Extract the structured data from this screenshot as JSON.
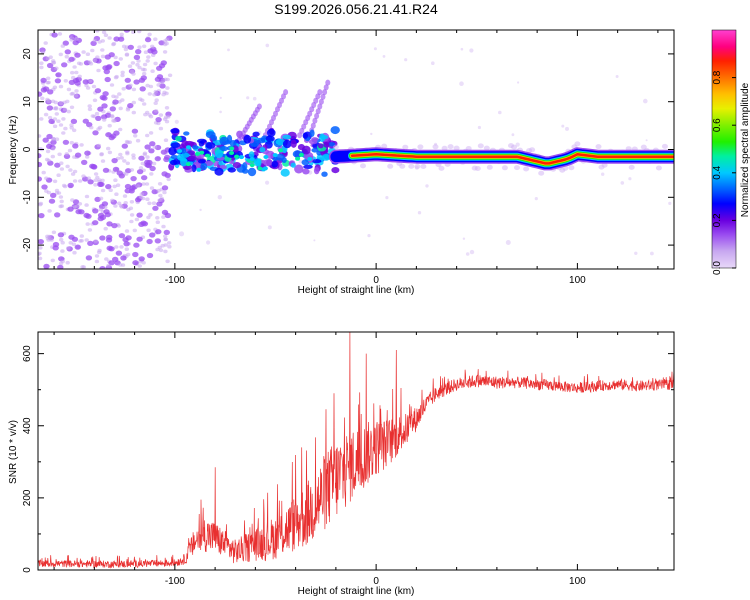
{
  "chart_data": [
    {
      "type": "heatmap",
      "title": "S199.2026.056.21.41.R24",
      "xlabel": "Height of straight line (km)",
      "ylabel": "Frequency (Hz)",
      "xlim": [
        -168,
        148
      ],
      "ylim": [
        -25,
        25
      ],
      "xticks": [
        -100,
        0,
        100
      ],
      "yticks": [
        -20,
        -10,
        0,
        10,
        20
      ],
      "xtick_labels": [
        "-100",
        "0",
        "100"
      ],
      "ytick_labels": [
        "-20",
        "-10",
        "0",
        "10",
        "20"
      ],
      "colorbar": {
        "label": "Normalized spectral amplitude",
        "range": [
          0,
          1
        ],
        "ticks": [
          0.0,
          0.2,
          0.4,
          0.6,
          0.8
        ],
        "tick_labels": [
          "0.0",
          "0.2",
          "0.4",
          "0.6",
          "0.8"
        ],
        "colormap": [
          "#e8d8f8",
          "#c8a8f0",
          "#9a4cf0",
          "#6a00e0",
          "#0000ff",
          "#0060ff",
          "#00c8ff",
          "#00f0a0",
          "#20f000",
          "#80f000",
          "#e8f000",
          "#ffc000",
          "#ff7000",
          "#ff2000",
          "#ff0080",
          "#ff40d0"
        ]
      },
      "noise_region": {
        "x_range": [
          -168,
          -102
        ],
        "y_range": [
          -25,
          25
        ],
        "amplitude_range": [
          0.02,
          0.15
        ]
      },
      "transition_region": {
        "x_range": [
          -102,
          -20
        ],
        "y_range": [
          -6,
          6
        ],
        "amplitude_range": [
          0.1,
          0.45
        ]
      },
      "diagonal_streaks": [
        {
          "x": [
            -68,
            -58
          ],
          "y": [
            2,
            9
          ]
        },
        {
          "x": [
            -55,
            -45
          ],
          "y": [
            3,
            12
          ]
        },
        {
          "x": [
            -38,
            -28
          ],
          "y": [
            3,
            12
          ]
        },
        {
          "x": [
            -32,
            -24
          ],
          "y": [
            4,
            14
          ]
        }
      ],
      "carrier_line": {
        "x": [
          -20,
          0,
          20,
          40,
          60,
          70,
          80,
          85,
          95,
          100,
          110,
          120,
          130,
          148
        ],
        "y": [
          -1.5,
          -1.0,
          -1.5,
          -1.5,
          -1.5,
          -1.5,
          -2.5,
          -3.0,
          -2.0,
          -1.0,
          -1.5,
          -1.5,
          -1.5,
          -1.5
        ],
        "amplitude": 0.9
      }
    },
    {
      "type": "line",
      "title": "",
      "xlabel": "Height of straight line (km)",
      "ylabel": "SNR (10 * v/v)",
      "xlim": [
        -168,
        148
      ],
      "ylim": [
        0,
        660
      ],
      "xticks": [
        -100,
        0,
        100
      ],
      "yticks": [
        0,
        200,
        400,
        600
      ],
      "xtick_labels": [
        "-100",
        "0",
        "100"
      ],
      "ytick_labels": [
        "0",
        "200",
        "400",
        "600"
      ],
      "color": "#e83030",
      "series": [
        {
          "name": "SNR",
          "x": [
            -168,
            -150,
            -130,
            -110,
            -100,
            -95,
            -90,
            -85,
            -80,
            -75,
            -70,
            -65,
            -60,
            -55,
            -50,
            -45,
            -40,
            -35,
            -30,
            -25,
            -20,
            -15,
            -10,
            -5,
            0,
            5,
            10,
            15,
            20,
            25,
            30,
            40,
            50,
            60,
            70,
            80,
            90,
            100,
            110,
            120,
            130,
            148
          ],
          "y": [
            18,
            17,
            16,
            18,
            20,
            30,
            80,
            100,
            90,
            70,
            50,
            60,
            70,
            80,
            90,
            110,
            130,
            150,
            180,
            220,
            250,
            280,
            300,
            320,
            340,
            350,
            370,
            390,
            420,
            460,
            490,
            515,
            525,
            520,
            520,
            515,
            510,
            505,
            510,
            515,
            510,
            515
          ],
          "spread": [
            10,
            10,
            10,
            10,
            10,
            15,
            40,
            50,
            45,
            40,
            35,
            40,
            45,
            55,
            60,
            70,
            80,
            90,
            100,
            110,
            115,
            110,
            100,
            90,
            80,
            70,
            60,
            45,
            35,
            25,
            20,
            18,
            18,
            18,
            16,
            16,
            15,
            15,
            15,
            15,
            15,
            15
          ],
          "spikes": [
            {
              "x": -80,
              "y": 285
            },
            {
              "x": -37,
              "y": 340
            },
            {
              "x": -21,
              "y": 490
            },
            {
              "x": -13,
              "y": 665
            },
            {
              "x": -5,
              "y": 600
            },
            {
              "x": 10,
              "y": 610
            }
          ]
        }
      ]
    }
  ]
}
